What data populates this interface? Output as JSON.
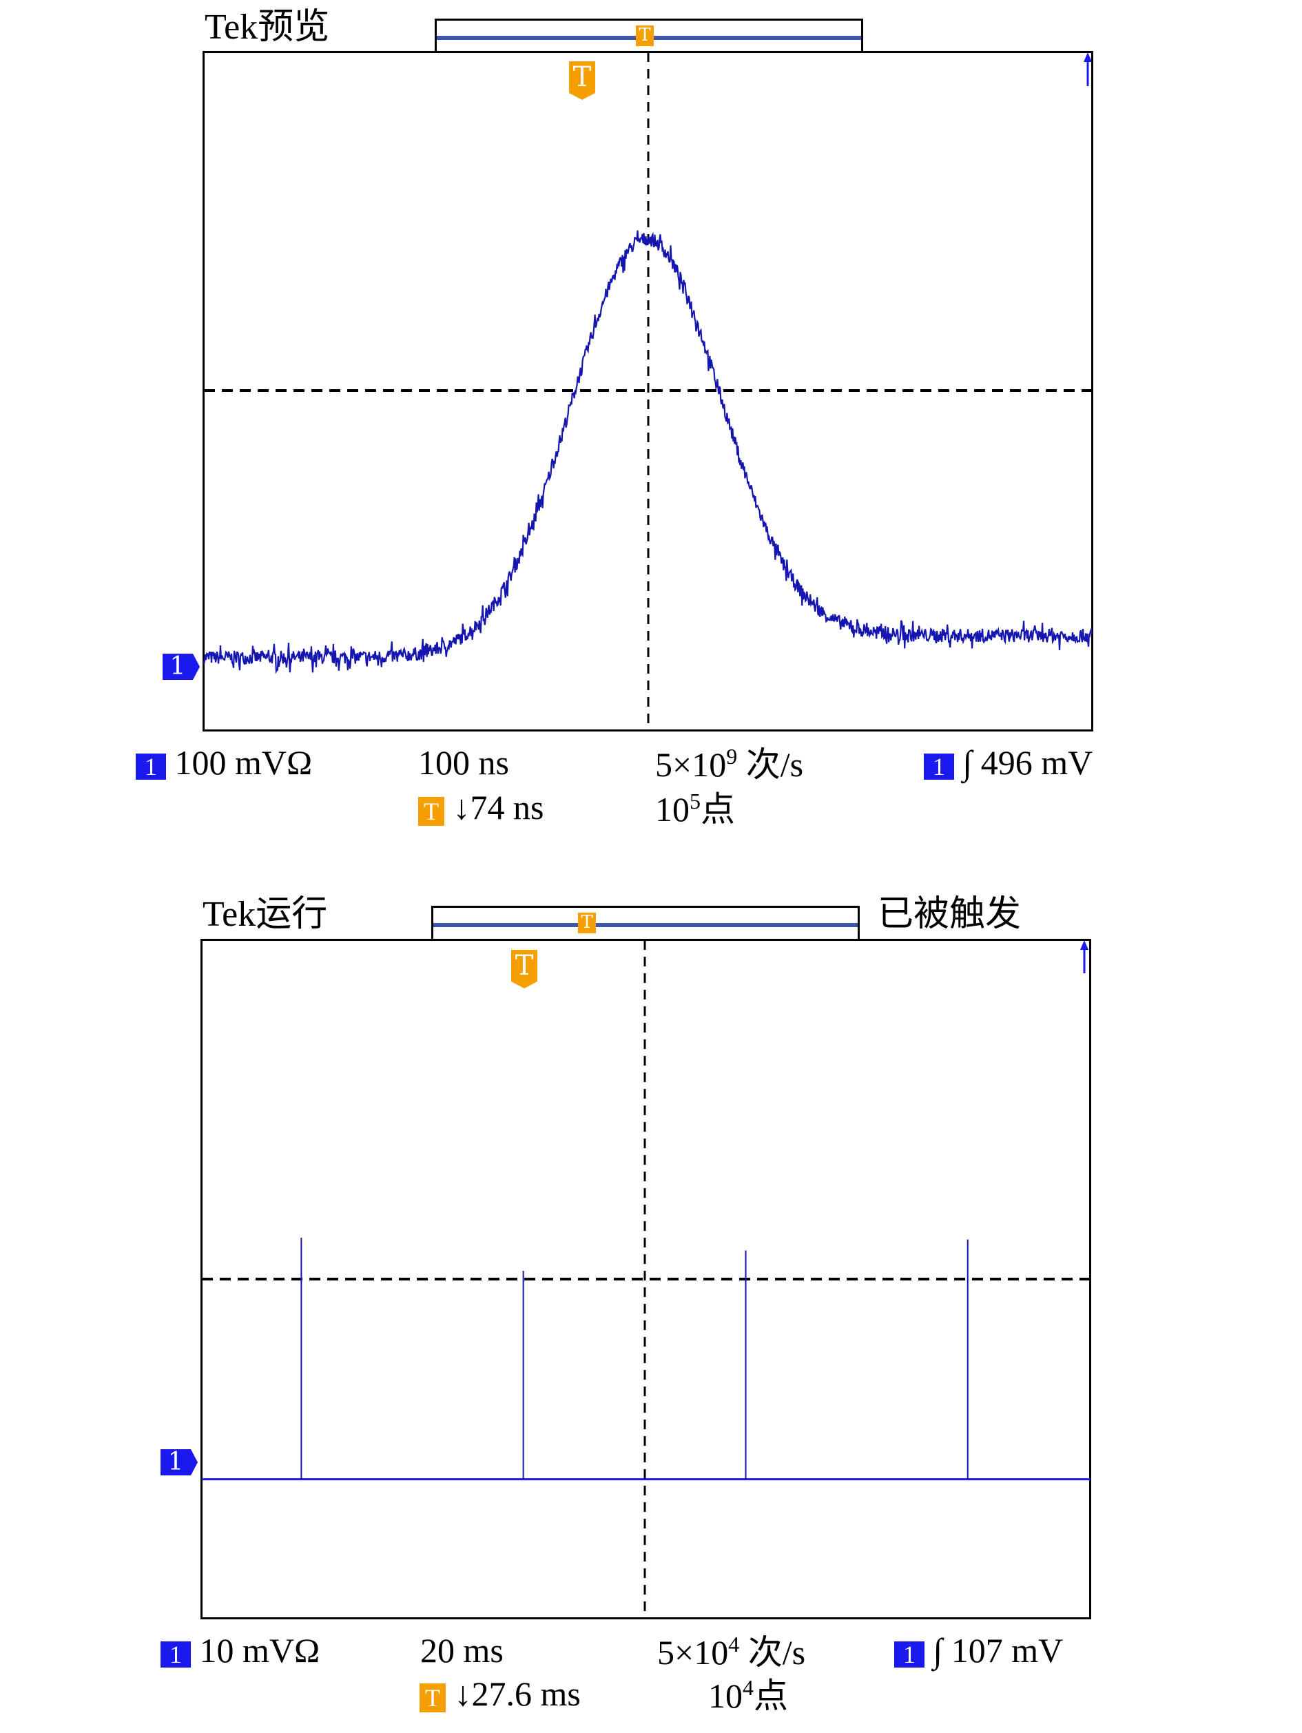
{
  "colors": {
    "trace": "#1515b0",
    "trace_flat": "#1a1aee",
    "trigger": "#f5a000",
    "channel": "#1a1aee",
    "grid": "#000000"
  },
  "chart_data": [
    {
      "type": "line",
      "title": "Tek预览",
      "status": "",
      "channel_marker": "1",
      "trigger_marker": "T",
      "readout": {
        "channel": "1",
        "vertical_scale": "100 mVΩ",
        "timebase": "100 ns",
        "sample_rate_base": "5×10",
        "sample_rate_exp": "9",
        "sample_rate_unit": " 次/s",
        "trigger_channel": "1",
        "trigger_slope": "∫",
        "trigger_level": "496 mV",
        "trigger_box": "T",
        "trigger_position": "↓74 ns",
        "record_base": "10",
        "record_exp": "5",
        "record_unit": "点"
      },
      "x_unit": "ns",
      "y_unit": "mV",
      "xlim": [
        0,
        1000
      ],
      "ylim": [
        -400,
        400
      ],
      "series": [
        {
          "shape": "gaussian-pulse",
          "peak_time": 496,
          "peak_mV": 504,
          "sigma_ns": 84,
          "baseline_left_mV": 10,
          "baseline_right_mV": 36,
          "noise_mV": 8
        }
      ],
      "grid": "center crosshair dashed"
    },
    {
      "type": "line",
      "title": "Tek运行",
      "status": "已被触发",
      "channel_marker": "1",
      "trigger_marker": "T",
      "readout": {
        "channel": "1",
        "vertical_scale": "10 mVΩ",
        "timebase": "20 ms",
        "sample_rate_base": "5×10",
        "sample_rate_exp": "4",
        "sample_rate_unit": " 次/s",
        "trigger_channel": "1",
        "trigger_slope": "∫",
        "trigger_level": "107 mV",
        "trigger_box": "T",
        "trigger_position": "↓27.6 ms",
        "record_base": "10",
        "record_exp": "4",
        "record_unit": "点"
      },
      "x_unit": "ms",
      "y_unit": "mV",
      "xlim": [
        0,
        200
      ],
      "ylim": [
        -40,
        40
      ],
      "series": [
        {
          "shape": "spike-train",
          "baseline_mV": -2,
          "spikes": [
            {
              "t": 22.4,
              "mV": 26.5
            },
            {
              "t": 72.4,
              "mV": 22.6
            },
            {
              "t": 122.5,
              "mV": 25
            },
            {
              "t": 172.5,
              "mV": 26.3
            }
          ]
        }
      ],
      "grid": "center crosshair dashed"
    }
  ]
}
